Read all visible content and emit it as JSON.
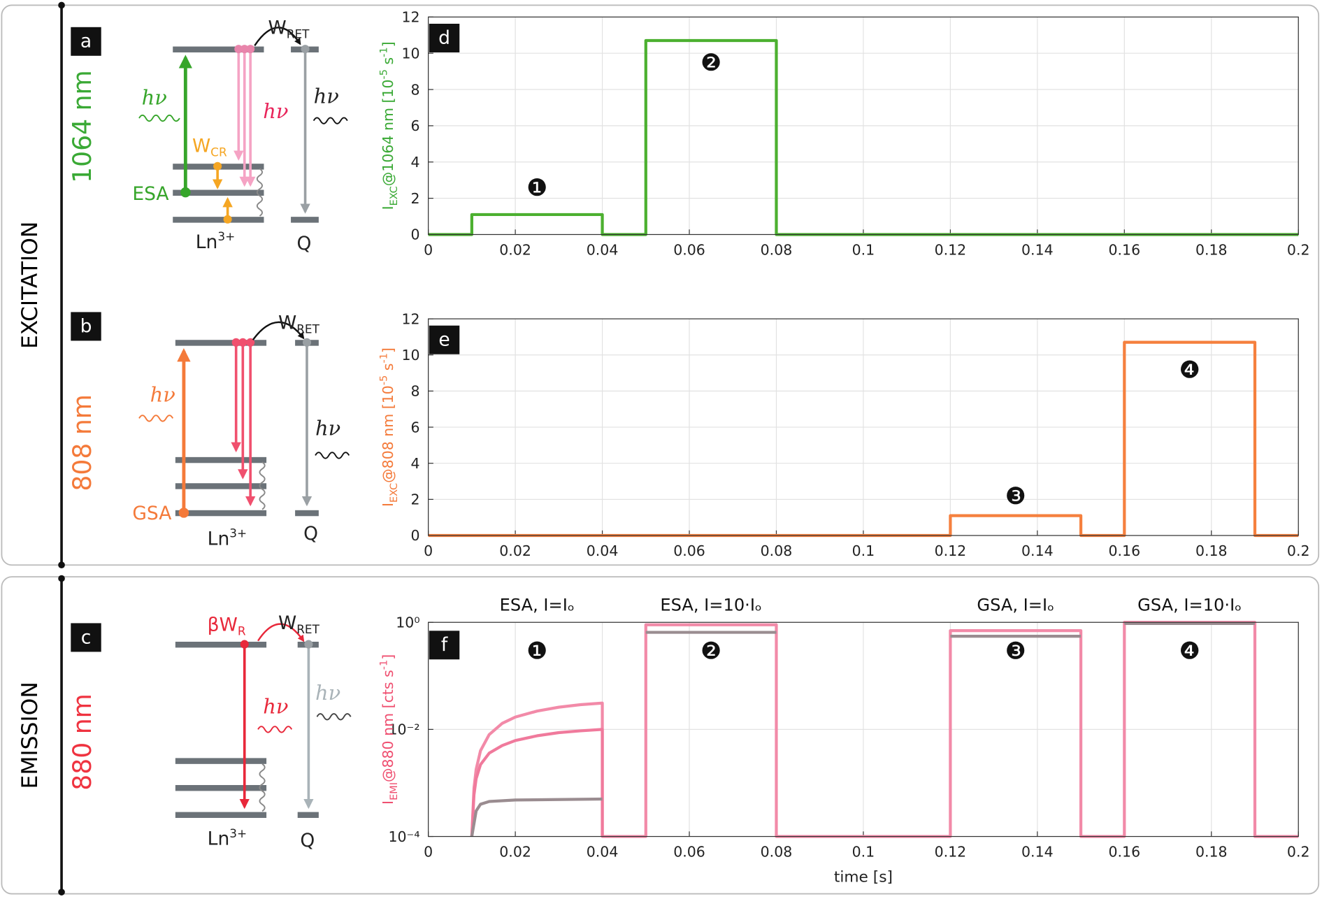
{
  "sections": [
    "EXCITATION",
    "EMISSION"
  ],
  "panels": [
    "a",
    "b",
    "c",
    "d",
    "e",
    "f"
  ],
  "diagrams": [
    {
      "wavelength": "1064 nm",
      "excitation_photon": "hν",
      "emission_photon": "hν",
      "transfer": [
        "W",
        "RET"
      ],
      "cross_relaxation": [
        "W",
        "CR"
      ],
      "absorption": "ESA",
      "ion": [
        "Ln",
        "3+"
      ],
      "quencher": "Q",
      "quencher_photon": "hν"
    },
    {
      "wavelength": "808 nm",
      "excitation_photon": "hν",
      "transfer": [
        "W",
        "RET"
      ],
      "absorption": "GSA",
      "ion": [
        "Ln",
        "3+"
      ],
      "quencher": "Q",
      "quencher_photon": "hν"
    },
    {
      "wavelength": "880 nm",
      "emission_rate": [
        "βW",
        "R"
      ],
      "transfer": [
        "W",
        "RET"
      ],
      "emission_photon": "hν",
      "quencher_photon": "hν",
      "ion": [
        "Ln",
        "3+"
      ],
      "quencher": "Q"
    }
  ],
  "chart_data": [
    {
      "type": "line",
      "ylabel": {
        "main": "I",
        "sub": "EXC",
        "text": "@1064 nm [10",
        "sup": "-5",
        "text2": " s",
        "sup2": "-1",
        "text3": "]"
      },
      "ylabel_color": "#3aa935",
      "xlim": [
        0,
        0.2
      ],
      "xticks": [
        0,
        0.02,
        0.04,
        0.06,
        0.08,
        0.1,
        0.12,
        0.14,
        0.16,
        0.18,
        0.2
      ],
      "ylim": [
        0,
        12
      ],
      "yticks": [
        0,
        2,
        4,
        6,
        8,
        10,
        12
      ],
      "grid": true,
      "series": [
        {
          "color": "#4cb030",
          "x": [
            0,
            0.01,
            0.01,
            0.04,
            0.04,
            0.05,
            0.05,
            0.08,
            0.08,
            0.2
          ],
          "values": [
            0,
            0,
            1.1,
            1.1,
            0,
            0,
            10.7,
            10.7,
            0,
            0
          ]
        }
      ],
      "annotations": [
        {
          "text": "❶",
          "x": 0.025,
          "y": 2.6
        },
        {
          "text": "❷",
          "x": 0.065,
          "y": 9.5
        }
      ]
    },
    {
      "type": "line",
      "ylabel": {
        "main": "I",
        "sub": "EXC",
        "text": "@808 nm [10",
        "sup": "-5",
        "text2": " s",
        "sup2": "-1",
        "text3": "]"
      },
      "ylabel_color": "#f47a3a",
      "xlim": [
        0,
        0.2
      ],
      "xticks": [
        0,
        0.02,
        0.04,
        0.06,
        0.08,
        0.1,
        0.12,
        0.14,
        0.16,
        0.18,
        0.2
      ],
      "ylim": [
        0,
        12
      ],
      "yticks": [
        0,
        2,
        4,
        6,
        8,
        10,
        12
      ],
      "grid": true,
      "series": [
        {
          "color": "#f5803e",
          "x": [
            0,
            0.12,
            0.12,
            0.15,
            0.15,
            0.16,
            0.16,
            0.19,
            0.19,
            0.2
          ],
          "values": [
            0,
            0,
            1.1,
            1.1,
            0,
            0,
            10.7,
            10.7,
            0,
            0
          ]
        }
      ],
      "annotations": [
        {
          "text": "❸",
          "x": 0.135,
          "y": 2.2
        },
        {
          "text": "❹",
          "x": 0.175,
          "y": 9.2
        }
      ]
    },
    {
      "type": "line",
      "ylabel": {
        "main": "I",
        "sub": "EMI",
        "text": "@880 nm [cts s",
        "sup": "-1",
        "text2": "]"
      },
      "ylabel_color": "#ef4f70",
      "xlabel": "time [s]",
      "xlim": [
        0,
        0.2
      ],
      "xticks": [
        0,
        0.02,
        0.04,
        0.06,
        0.08,
        0.1,
        0.12,
        0.14,
        0.16,
        0.18,
        0.2
      ],
      "yscale": "log",
      "ylim": [
        0.0001,
        1
      ],
      "yticks": [
        {
          "value": 0.0001,
          "label": "10⁻⁴"
        },
        {
          "value": 0.01,
          "label": "10⁻²"
        },
        {
          "value": 1,
          "label": "10⁰"
        }
      ],
      "grid": true,
      "series": [
        {
          "color": "#f28aa8",
          "x": [
            0.01,
            0.0105,
            0.011,
            0.012,
            0.014,
            0.017,
            0.02,
            0.025,
            0.03,
            0.035,
            0.04,
            0.04,
            0.05,
            0.05,
            0.08,
            0.08,
            0.12,
            0.12,
            0.15,
            0.15,
            0.16,
            0.16,
            0.19,
            0.19,
            0.2
          ],
          "values": [
            0.0001,
            0.0008,
            0.0018,
            0.004,
            0.008,
            0.013,
            0.017,
            0.022,
            0.026,
            0.029,
            0.031,
            0.0001,
            0.0001,
            0.9,
            0.9,
            0.0001,
            0.0001,
            0.7,
            0.7,
            0.0001,
            0.0001,
            1,
            1,
            0.0001,
            0.0001
          ]
        },
        {
          "color": "#f07a9c",
          "x": [
            0.01,
            0.0105,
            0.011,
            0.012,
            0.014,
            0.017,
            0.02,
            0.025,
            0.03,
            0.035,
            0.04,
            0.04
          ],
          "values": [
            0.0001,
            0.0006,
            0.0012,
            0.0022,
            0.0036,
            0.005,
            0.0062,
            0.0076,
            0.0087,
            0.0094,
            0.01,
            0.0001
          ]
        },
        {
          "color": "#9a8c90",
          "x": [
            0.01,
            0.011,
            0.012,
            0.014,
            0.02,
            0.04,
            0.04,
            0.05,
            0.08,
            0.08,
            0.12,
            0.15,
            0.15,
            0.16,
            0.19
          ],
          "values": [
            0.0001,
            0.0003,
            0.0004,
            0.00045,
            0.00048,
            0.0005,
            null,
            0.65,
            0.65,
            null,
            0.55,
            0.55,
            null,
            0.95,
            0.95
          ]
        }
      ],
      "column_titles": [
        {
          "text": "ESA, I=Iₒ",
          "x": 0.025
        },
        {
          "text": "ESA, I=10·Iₒ",
          "x": 0.065
        },
        {
          "text": "GSA, I=Iₒ",
          "x": 0.135
        },
        {
          "text": "GSA, I=10·Iₒ",
          "x": 0.175
        }
      ],
      "annotations": [
        {
          "text": "❶",
          "x": 0.025,
          "y": 0.3
        },
        {
          "text": "❷",
          "x": 0.065,
          "y": 0.3
        },
        {
          "text": "❸",
          "x": 0.135,
          "y": 0.3
        },
        {
          "text": "❹",
          "x": 0.175,
          "y": 0.3
        }
      ]
    }
  ]
}
